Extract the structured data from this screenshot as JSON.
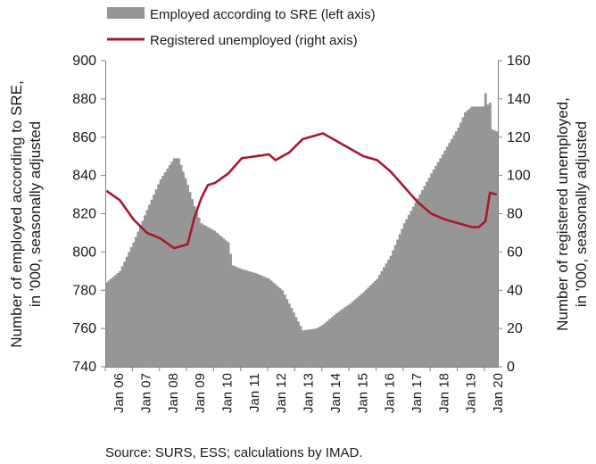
{
  "chart_data": {
    "type": "bar+line",
    "legend": [
      {
        "label": "Employed according to SRE (left axis)",
        "swatch": "bar",
        "color": "#969696"
      },
      {
        "label": "Registered unemployed (right axis)",
        "swatch": "line",
        "color": "#a6192e"
      }
    ],
    "ylabel_left": [
      "Number of employed according to SRE,",
      "in '000, seasonally adjusted"
    ],
    "ylabel_right": [
      "Number of registered unemployed,",
      "in '000, seasonally adjusted"
    ],
    "left_axis": {
      "min": 740,
      "max": 900,
      "ticks": [
        "740",
        "760",
        "780",
        "800",
        "820",
        "840",
        "860",
        "880",
        "900"
      ]
    },
    "right_axis": {
      "min": 0,
      "max": 160,
      "ticks": [
        "0",
        "20",
        "40",
        "60",
        "80",
        "100",
        "120",
        "140",
        "160"
      ]
    },
    "x_tick_labels": [
      "Jan 06",
      "Jan 07",
      "Jan 08",
      "Jan 09",
      "Jan 10",
      "Jan 11",
      "Jan 12",
      "Jan 13",
      "Jan 14",
      "Jan 15",
      "Jan 16",
      "Jan 17",
      "Jan 18",
      "Jan 19",
      "Jan 20"
    ],
    "x_range": {
      "start": "2006-01",
      "end": "2020-06"
    },
    "bar_series_knots": [
      [
        "2006-01",
        784
      ],
      [
        "2006-07",
        790
      ],
      [
        "2007-01",
        805
      ],
      [
        "2007-07",
        822
      ],
      [
        "2008-01",
        838
      ],
      [
        "2008-07",
        849
      ],
      [
        "2008-09",
        849
      ],
      [
        "2009-01",
        835
      ],
      [
        "2009-04",
        824
      ],
      [
        "2009-07",
        815
      ],
      [
        "2010-01",
        811
      ],
      [
        "2010-07",
        805
      ],
      [
        "2010-09",
        793
      ],
      [
        "2011-01",
        791
      ],
      [
        "2011-07",
        789
      ],
      [
        "2012-01",
        786
      ],
      [
        "2012-07",
        780
      ],
      [
        "2013-01",
        766
      ],
      [
        "2013-04",
        759
      ],
      [
        "2013-10",
        760
      ],
      [
        "2014-01",
        762
      ],
      [
        "2014-07",
        768
      ],
      [
        "2015-01",
        773
      ],
      [
        "2015-07",
        779
      ],
      [
        "2016-01",
        786
      ],
      [
        "2016-07",
        798
      ],
      [
        "2017-01",
        815
      ],
      [
        "2017-07",
        828
      ],
      [
        "2018-01",
        841
      ],
      [
        "2018-07",
        853
      ],
      [
        "2019-01",
        865
      ],
      [
        "2019-04",
        873
      ],
      [
        "2019-07",
        876
      ],
      [
        "2019-12",
        876
      ],
      [
        "2020-01",
        883
      ],
      [
        "2020-02",
        877
      ],
      [
        "2020-03",
        878
      ],
      [
        "2020-04",
        864
      ],
      [
        "2020-06",
        863
      ]
    ],
    "line_series_knots": [
      [
        "2006-01",
        92
      ],
      [
        "2006-07",
        87
      ],
      [
        "2007-01",
        77
      ],
      [
        "2007-07",
        70
      ],
      [
        "2008-01",
        67
      ],
      [
        "2008-07",
        62
      ],
      [
        "2009-01",
        64
      ],
      [
        "2009-04",
        78
      ],
      [
        "2009-07",
        88
      ],
      [
        "2009-10",
        95
      ],
      [
        "2010-01",
        96
      ],
      [
        "2010-07",
        101
      ],
      [
        "2011-01",
        109
      ],
      [
        "2011-07",
        110
      ],
      [
        "2012-01",
        111
      ],
      [
        "2012-04",
        108
      ],
      [
        "2012-10",
        112
      ],
      [
        "2013-04",
        119
      ],
      [
        "2013-07",
        120
      ],
      [
        "2014-01",
        122
      ],
      [
        "2014-07",
        118
      ],
      [
        "2015-01",
        114
      ],
      [
        "2015-07",
        110
      ],
      [
        "2016-01",
        108
      ],
      [
        "2016-07",
        102
      ],
      [
        "2017-01",
        94
      ],
      [
        "2017-07",
        86
      ],
      [
        "2018-01",
        80
      ],
      [
        "2018-07",
        77
      ],
      [
        "2019-01",
        75
      ],
      [
        "2019-07",
        73
      ],
      [
        "2019-10",
        73
      ],
      [
        "2020-01",
        76
      ],
      [
        "2020-03",
        91
      ],
      [
        "2020-06",
        90
      ]
    ],
    "grid": false
  },
  "source": "Source: SURS, ESS; calculations by IMAD."
}
